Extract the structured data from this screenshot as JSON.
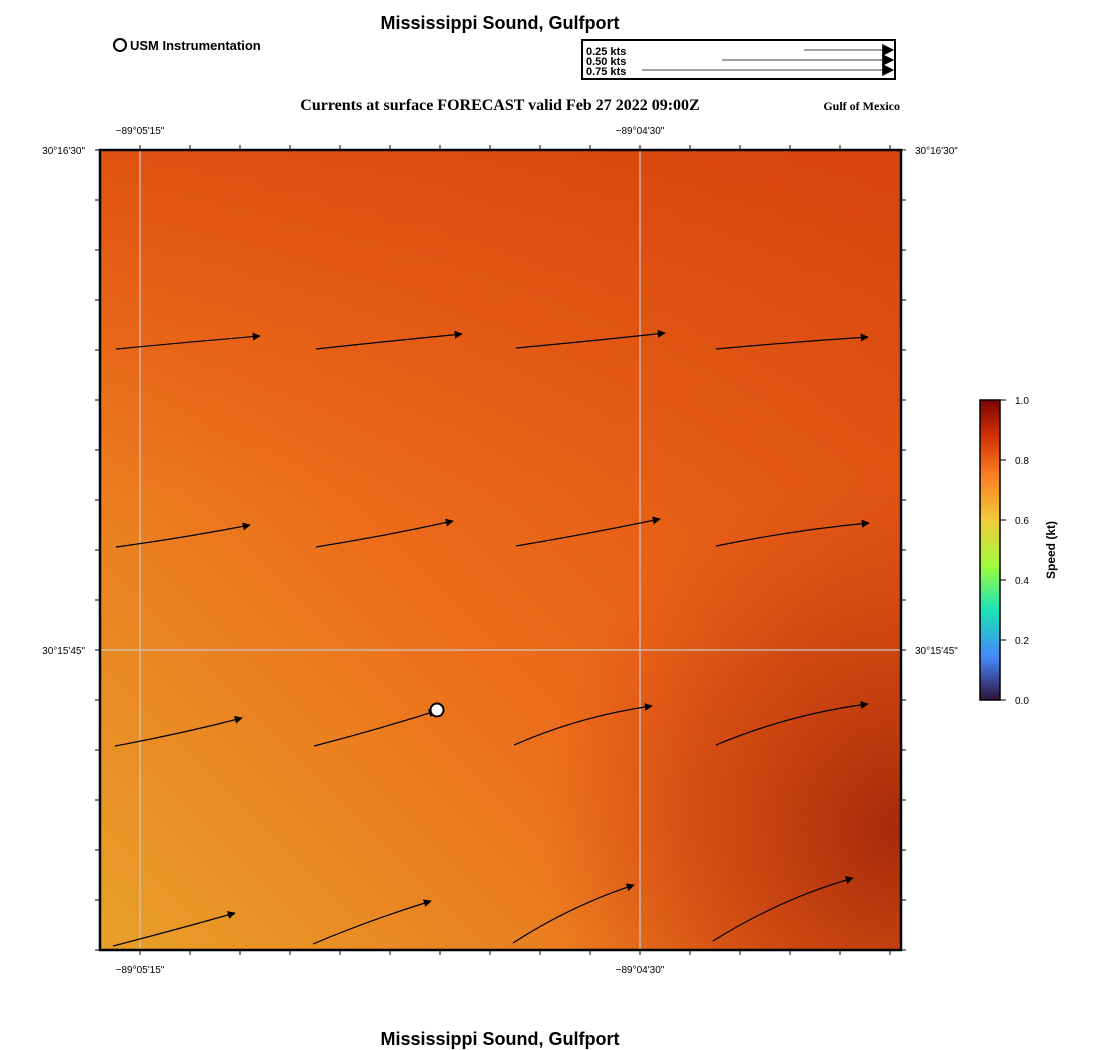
{
  "header": {
    "title": "Mississippi Sound, Gulfport",
    "legend_marker_label": "USM Instrumentation",
    "subtitle": "Currents at surface FORECAST valid Feb 27 2022 09:00Z",
    "region": "Gulf of Mexico"
  },
  "speed_legend": {
    "labels": [
      "0.25 kts",
      "0.50 kts",
      "0.75 kts"
    ],
    "speeds_kt": [
      0.25,
      0.5,
      0.75
    ]
  },
  "map": {
    "top_lon_labels": [
      "−89°05'15\"",
      "−89°04'30\""
    ],
    "bottom_lon_labels": [
      "−89°05'15\"",
      "−89°04'30\""
    ],
    "left_lat_labels": [
      "30°16'30\"",
      "30°15'45\""
    ],
    "right_lat_labels": [
      "30°16'30\"",
      "30°15'45\""
    ],
    "arrow_rows": 4,
    "arrow_cols": 4,
    "colors": {
      "field_light": "#e8a02a",
      "field_mid": "#ec5e18",
      "field_dark": "#a8280a",
      "gridline": "#c8c8c8",
      "arrow": "#000000"
    }
  },
  "colorbar": {
    "label": "Speed (kt)",
    "ticks": [
      "1.0",
      "0.8",
      "0.6",
      "0.4",
      "0.2",
      "0.0"
    ],
    "colors": [
      "#30123b",
      "#4686fb",
      "#1ae4b6",
      "#a2fc3c",
      "#f1ca3a",
      "#fb7e21",
      "#d23105",
      "#7a0403"
    ]
  },
  "footer": {
    "title": "Mississippi Sound, Gulfport"
  }
}
